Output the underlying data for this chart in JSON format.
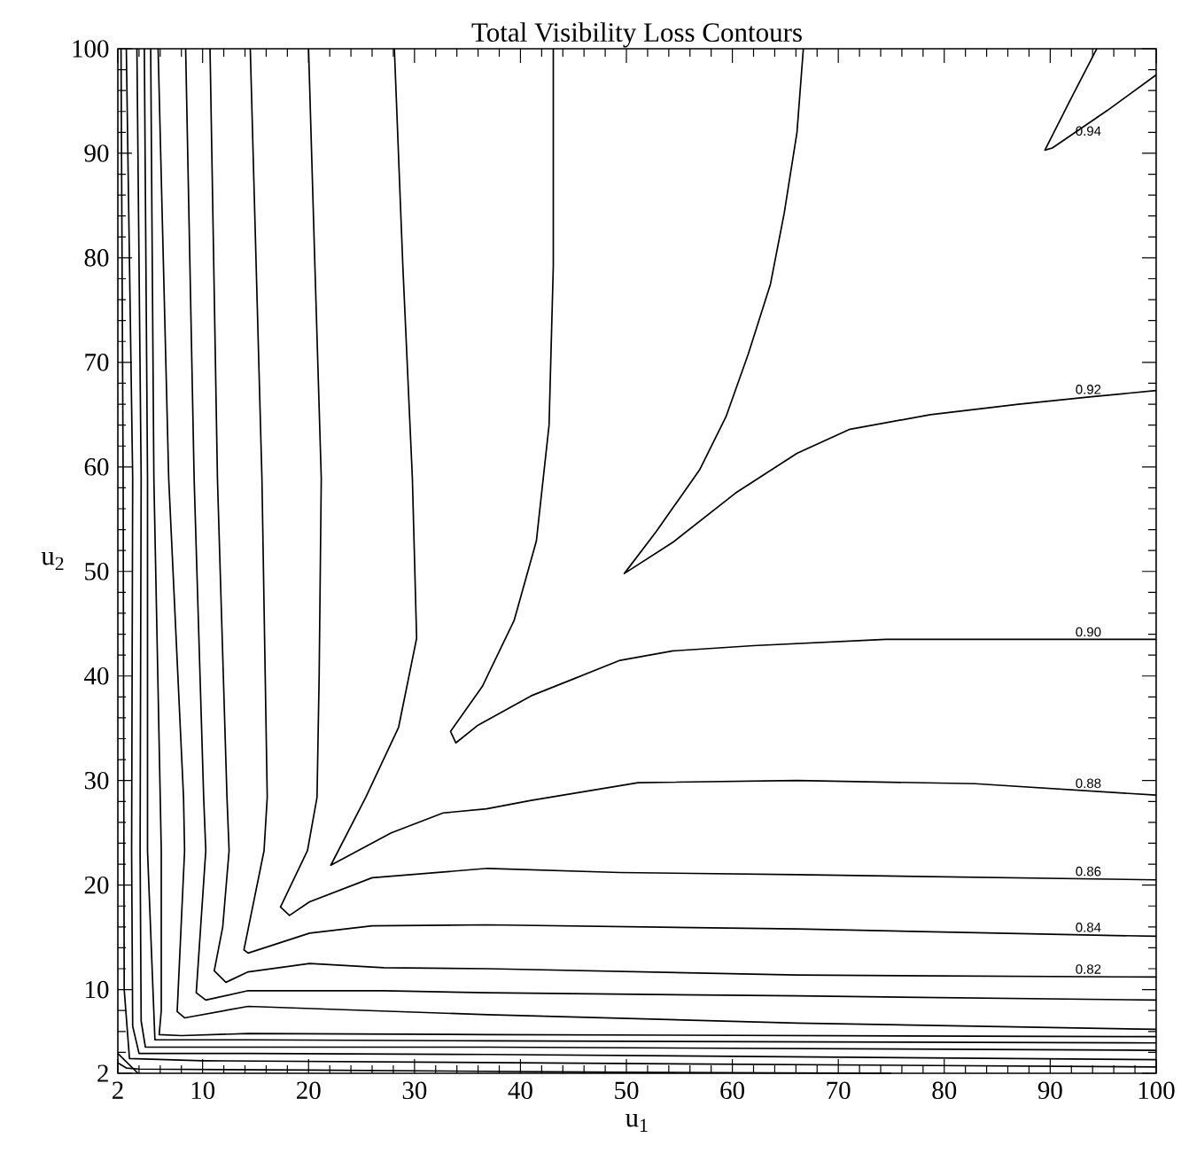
{
  "chart_data": {
    "type": "line",
    "title": "Total Visibility Loss Contours",
    "xlabel": "u$_{1}$",
    "ylabel": "u$_{2}$",
    "xlim": [
      2,
      100
    ],
    "ylim": [
      2,
      100
    ],
    "xticks": [
      2,
      10,
      20,
      30,
      40,
      50,
      60,
      70,
      80,
      90,
      100
    ],
    "yticks": [
      2,
      10,
      20,
      30,
      40,
      50,
      60,
      70,
      80,
      90,
      100
    ],
    "series": [
      {
        "name": "0.94",
        "color": "#000000",
        "x": [
          94.4,
          92.0,
          89.5,
          90.2,
          95.4,
          100
        ],
        "values": [
          100,
          95.3,
          90.3,
          90.5,
          94.1,
          97.5
        ]
      },
      {
        "name": "0.92",
        "color": "#000000",
        "x": [
          66.7,
          66.1,
          64.9,
          63.6,
          61.5,
          59.4,
          56.9,
          52.8,
          49.8,
          54.4,
          60.3,
          66.1,
          71.1,
          78.7,
          87.0,
          93.7,
          100
        ],
        "values": [
          100,
          92.0,
          84.3,
          77.5,
          70.8,
          64.8,
          59.7,
          53.8,
          49.8,
          52.8,
          57.5,
          61.3,
          63.6,
          65.0,
          66.0,
          66.7,
          67.3
        ]
      },
      {
        "name": "0.90",
        "color": "#000000",
        "x": [
          43.1,
          43.1,
          42.7,
          41.5,
          39.4,
          36.4,
          33.4,
          33.9,
          36.0,
          41.0,
          45.2,
          49.4,
          54.4,
          62.0,
          74.5,
          100
        ],
        "values": [
          100,
          79.2,
          64.0,
          52.9,
          45.3,
          39.0,
          34.7,
          33.6,
          35.3,
          38.1,
          39.8,
          41.5,
          42.4,
          42.9,
          43.5,
          43.5
        ]
      },
      {
        "name": "0.88",
        "color": "#000000",
        "x": [
          28.1,
          28.9,
          29.8,
          30.2,
          28.5,
          25.4,
          22.1,
          27.8,
          32.7,
          36.8,
          41.0,
          51.1,
          66.1,
          82.9,
          100
        ],
        "values": [
          100,
          79.2,
          58.9,
          43.6,
          35.1,
          28.4,
          21.9,
          25.0,
          26.9,
          27.3,
          28.1,
          29.8,
          30.0,
          29.7,
          28.6
        ]
      },
      {
        "name": "0.86",
        "color": "#000000",
        "x": [
          20.0,
          20.6,
          21.2,
          21.0,
          20.8,
          19.9,
          17.35,
          18.2,
          20.1,
          26.0,
          36.9,
          49.4,
          66.1,
          100
        ],
        "values": [
          100,
          79.2,
          58.9,
          40,
          28.4,
          23.3,
          17.9,
          17.1,
          18.4,
          20.7,
          21.6,
          21.2,
          21.0,
          20.5
        ]
      },
      {
        "name": "0.84",
        "color": "#000000",
        "x": [
          14.5,
          15.6,
          16.1,
          15.8,
          13.9,
          14.3,
          20.1,
          26.0,
          36.9,
          66.1,
          100
        ],
        "values": [
          100,
          58.9,
          28.4,
          23.3,
          13.8,
          13.5,
          15.4,
          16.1,
          16.2,
          15.8,
          15.1
        ]
      },
      {
        "name": "0.82",
        "color": "#000000",
        "x": [
          10.7,
          11.4,
          12.3,
          12.5,
          11.9,
          11.1,
          12.2,
          14.3,
          20.1,
          27.1,
          36.9,
          66.1,
          100
        ],
        "values": [
          100,
          58.9,
          28.4,
          23.3,
          16.0,
          11.8,
          10.7,
          11.7,
          12.5,
          12.1,
          12.0,
          11.4,
          11.2
        ]
      },
      {
        "color": "#000000",
        "x": [
          8.4,
          9.2,
          10.1,
          10.3,
          9.4,
          10.3,
          14.3,
          27.1,
          36.9,
          66.1,
          100
        ],
        "values": [
          100,
          58.9,
          28.4,
          23.3,
          9.7,
          9.0,
          9.9,
          9.9,
          9.7,
          9.4,
          9.0
        ]
      },
      {
        "color": "#000000",
        "x": [
          5.8,
          6.8,
          8.2,
          8.3,
          7.6,
          8.3,
          14.3,
          36.9,
          66.1,
          100
        ],
        "values": [
          100,
          58.9,
          28.4,
          23.3,
          7.9,
          7.3,
          8.4,
          7.6,
          6.8,
          6.2
        ]
      },
      {
        "color": "#000000",
        "x": [
          5.1,
          5.4,
          6.1,
          6.1,
          5.9,
          8.0,
          14.3,
          36.9,
          100
        ],
        "values": [
          100,
          58.9,
          23.3,
          8.0,
          5.7,
          5.6,
          5.8,
          5.7,
          5.5
        ]
      },
      {
        "color": "#000000",
        "x": [
          4.5,
          4.8,
          4.8,
          5.5,
          14.3,
          36.9,
          100
        ],
        "values": [
          100,
          58.9,
          23.3,
          5.2,
          5.2,
          5.1,
          4.9
        ]
      },
      {
        "color": "#000000",
        "x": [
          3.8,
          4.2,
          4.1,
          4.2,
          4.6,
          14.3,
          36.9,
          100
        ],
        "values": [
          100,
          58.9,
          23.3,
          7.0,
          4.5,
          4.5,
          4.5,
          4.2
        ]
      },
      {
        "color": "#000000",
        "x": [
          2.8,
          3.4,
          3.3,
          3.4,
          4.0,
          14.3,
          36.9,
          100
        ],
        "values": [
          100,
          58.9,
          23.3,
          6.5,
          3.9,
          3.9,
          3.8,
          3.3
        ]
      },
      {
        "color": "#000000",
        "x": [
          2.3,
          2.5,
          2.6,
          3.1,
          10,
          40,
          100
        ],
        "values": [
          100,
          58.9,
          10,
          3.4,
          3.2,
          3.0,
          2.6
        ]
      },
      {
        "color": "#000000",
        "x": [
          2.0,
          3.9
        ],
        "values": [
          3.9,
          2.0
        ]
      },
      {
        "color": "#000000",
        "x": [
          2.0,
          2.8,
          4.0,
          20,
          50,
          75
        ],
        "values": [
          3.0,
          2.5,
          2.4,
          2.3,
          2.1,
          2.0
        ]
      }
    ]
  }
}
